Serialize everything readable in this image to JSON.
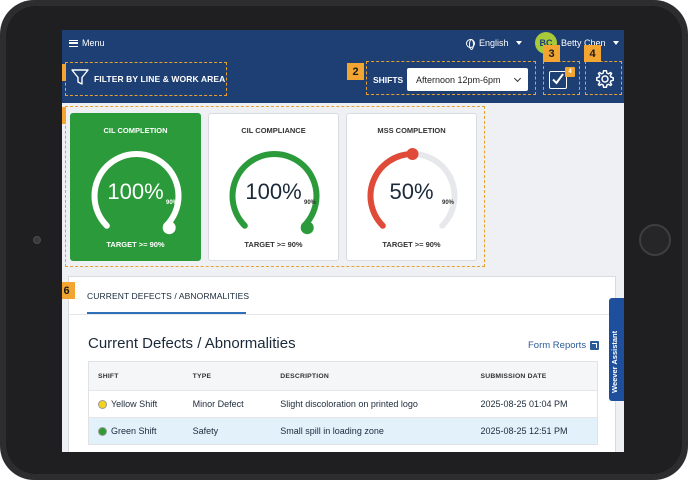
{
  "topbar": {
    "menu_label": "Menu",
    "language": "English",
    "user_initials": "BC",
    "user_name": "Betty Chen"
  },
  "filterbar": {
    "filter_label": "FILTER BY LINE & WORK AREA",
    "shifts_label": "SHIFTS",
    "shift_selected": "Afternoon 12pm-6pm",
    "tasks_badge": "4"
  },
  "callouts": [
    "1",
    "2",
    "3",
    "4",
    "5",
    "6"
  ],
  "cards": [
    {
      "title": "CIL COMPLETION",
      "value": "100%",
      "max_label": "90%",
      "target": "TARGET >= 90%",
      "percent": 100,
      "color": "#ffffff"
    },
    {
      "title": "CIL COMPLIANCE",
      "value": "100%",
      "max_label": "90%",
      "target": "TARGET >= 90%",
      "percent": 100,
      "color": "#2b9a3a"
    },
    {
      "title": "MSS COMPLETION",
      "value": "50%",
      "max_label": "90%",
      "target": "TARGET >= 90%",
      "percent": 50,
      "color": "#e04a38"
    }
  ],
  "defects": {
    "tab_label": "CURRENT DEFECTS / ABNORMALITIES",
    "title": "Current Defects / Abnormalities",
    "form_reports": "Form Reports",
    "columns": [
      "SHIFT",
      "TYPE",
      "DESCRIPTION",
      "SUBMISSION DATE"
    ],
    "rows": [
      {
        "shift": "Yellow Shift",
        "dot_color": "#f3d31b",
        "type": "Minor Defect",
        "description": "Slight discoloration on printed logo",
        "date": "2025-08-25 01:04 PM"
      },
      {
        "shift": "Green Shift",
        "dot_color": "#2e9c2e",
        "type": "Safety",
        "description": "Small spill in loading zone",
        "date": "2025-08-25 12:51 PM"
      }
    ]
  },
  "assistant_label": "Weever Assistant"
}
